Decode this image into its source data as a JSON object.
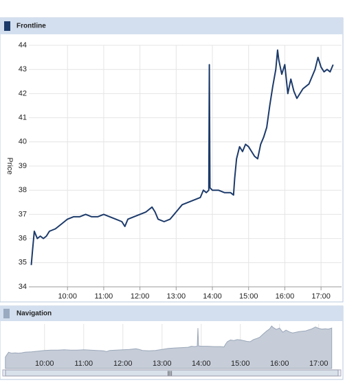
{
  "chart_data": {
    "type": "line",
    "title": "Frontline",
    "navigator_title": "Navigation",
    "y_label": "Price",
    "x": [
      "09:00",
      "09:02",
      "09:05",
      "09:10",
      "09:15",
      "09:20",
      "09:25",
      "09:30",
      "09:40",
      "09:50",
      "10:00",
      "10:10",
      "10:20",
      "10:30",
      "10:40",
      "10:50",
      "11:00",
      "11:10",
      "11:20",
      "11:30",
      "11:35",
      "11:40",
      "11:50",
      "12:00",
      "12:10",
      "12:20",
      "12:25",
      "12:30",
      "12:40",
      "12:50",
      "13:00",
      "13:10",
      "13:20",
      "13:30",
      "13:40",
      "13:45",
      "13:50",
      "13:54",
      "13:55",
      "13:56",
      "14:00",
      "14:10",
      "14:20",
      "14:30",
      "14:35",
      "14:37",
      "14:40",
      "14:45",
      "14:50",
      "14:55",
      "15:00",
      "15:05",
      "15:10",
      "15:15",
      "15:20",
      "15:25",
      "15:30",
      "15:35",
      "15:40",
      "15:45",
      "15:48",
      "15:50",
      "15:55",
      "16:00",
      "16:05",
      "16:10",
      "16:15",
      "16:20",
      "16:25",
      "16:30",
      "16:40",
      "16:50",
      "16:55",
      "17:00",
      "17:05",
      "17:10",
      "17:15",
      "17:20"
    ],
    "series": [
      {
        "name": "Frontline",
        "color": "#1c3a6a",
        "values": [
          34.9,
          35.5,
          36.3,
          36.0,
          36.1,
          36.0,
          36.1,
          36.3,
          36.4,
          36.6,
          36.8,
          36.9,
          36.9,
          37.0,
          36.9,
          36.9,
          37.0,
          36.9,
          36.8,
          36.7,
          36.5,
          36.8,
          36.9,
          37.0,
          37.1,
          37.3,
          37.1,
          36.8,
          36.7,
          36.8,
          37.1,
          37.4,
          37.5,
          37.6,
          37.7,
          38.0,
          37.9,
          38.0,
          43.2,
          38.1,
          38.0,
          38.0,
          37.9,
          37.9,
          37.8,
          38.5,
          39.3,
          39.8,
          39.6,
          39.9,
          39.8,
          39.6,
          39.4,
          39.3,
          39.9,
          40.2,
          40.6,
          41.5,
          42.3,
          43.0,
          43.8,
          43.4,
          42.8,
          43.2,
          42.0,
          42.6,
          42.1,
          41.8,
          42.0,
          42.2,
          42.4,
          43.0,
          43.5,
          43.1,
          42.9,
          43.0,
          42.9,
          43.2
        ]
      }
    ],
    "xlim": [
      "08:56",
      "17:34"
    ],
    "xticks": [
      "10:00",
      "11:00",
      "12:00",
      "13:00",
      "14:00",
      "15:00",
      "16:00",
      "17:00"
    ],
    "ylim": [
      34,
      44
    ],
    "yticks": [
      34,
      35,
      36,
      37,
      38,
      39,
      40,
      41,
      42,
      43,
      44
    ],
    "grid": true
  }
}
